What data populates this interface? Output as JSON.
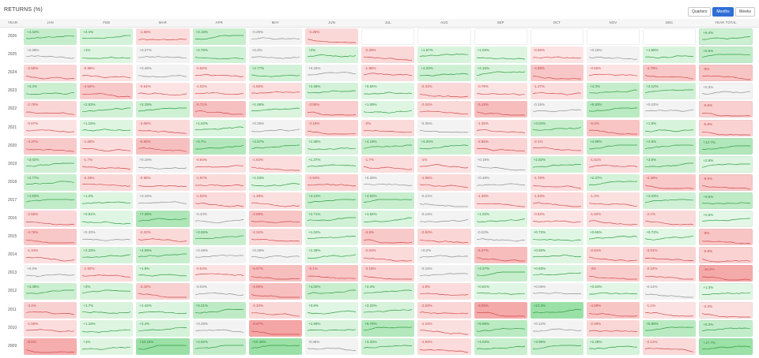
{
  "title": "RETURNS (%)",
  "toggle": [
    {
      "label": "Quarters",
      "active": false
    },
    {
      "label": "Months",
      "active": true
    },
    {
      "label": "Weeks",
      "active": false
    }
  ],
  "columns": [
    "YEAR",
    "JAN",
    "FEB",
    "MAR",
    "APR",
    "MAY",
    "JUN",
    "JUL",
    "AUG",
    "SEP",
    "OCT",
    "NOV",
    "DEC",
    "YEAR TOTAL"
  ],
  "rows": [
    {
      "year": "2026",
      "values": [
        "+4.34%",
        "+2.4%",
        "-1.68%",
        "+4.16%",
        "-0.29%",
        "-2.28%",
        null,
        null,
        null,
        null,
        null,
        null
      ],
      "total": "+6.4%"
    },
    {
      "year": "2025",
      "values": [
        "+0.38%",
        "+1%",
        "+0.37%",
        "+2.75%",
        "+0.3%",
        "+2%",
        "-2.29%",
        "+1.87%",
        "+1.03%",
        "-0.56%",
        "+0.16%",
        "+1.86%"
      ],
      "total": "+8.6%"
    },
    {
      "year": "2024",
      "values": [
        "-2.59%",
        "-0.98%",
        "+0.48%",
        "-0.92%",
        "+2.77%",
        "+0.26%",
        "-1.86%",
        "+3.33%",
        "+2.15%",
        "-4.88%",
        "-0.56%",
        "-4.79%"
      ],
      "total": "-9%"
    },
    {
      "year": "2023",
      "values": [
        "+3.4%",
        "-4.52%",
        "-0.64%",
        "-1.02%",
        "-1.55%",
        "+2.46%",
        "+0.84%",
        "-2.41%",
        "-0.78%",
        "-1.47%",
        "+4.3%",
        "+3.12%"
      ],
      "total": "+0.3%"
    },
    {
      "year": "2022",
      "values": [
        "-2.75%",
        "+2.83%",
        "+3.19%",
        "-5.71%",
        "+1.58%",
        "-3.95%",
        "+1.09%",
        "-2.04%",
        "-6.19%",
        "-0.16%",
        "+5.93%",
        "+0.22%"
      ],
      "total": "-6.5%"
    },
    {
      "year": "2021",
      "values": [
        "-0.67%",
        "+1.16%",
        "-2.06%",
        "+1.62%",
        "+0.35%",
        "-3.18%",
        "-2%",
        "-0.35%",
        "-1.25%",
        "+4.04%",
        "-5.2%",
        "+1.9%"
      ],
      "total": "-5.8%"
    },
    {
      "year": "2020",
      "values": [
        "-4.37%",
        "-1.68%",
        "-5.85%",
        "+6.7%",
        "+4.57%",
        "+1.68%",
        "+4.19%",
        "+3.26%",
        "-2.85%",
        "-2.1%",
        "+4.99%",
        "+4.6%"
      ],
      "total": "+12.7%"
    },
    {
      "year": "2019",
      "values": [
        "+3.02%",
        "-1.7%",
        "+0.19%",
        "-0.84%",
        "-1.63%",
        "+1.37%",
        "-1.7%",
        "-1%",
        "+0.19%",
        "+2.82%",
        "-1.81%",
        "+3.5%"
      ],
      "total": "+2.5%"
    },
    {
      "year": "2018",
      "values": [
        "+3.77%",
        "-2.33%",
        "-0.98%",
        "-1.97%",
        "+1.03%",
        "-2.94%",
        "+0.28%",
        "-1.95%",
        "+0.48%",
        "-1.78%",
        "+2.37%",
        "-4.46%"
      ],
      "total": "-8.5%"
    },
    {
      "year": "2017",
      "values": [
        "+4.93%",
        "+1.2%",
        "+0.16%",
        "-1.93%",
        "-1.39%",
        "+4.13%",
        "+4.02%",
        "-0.21%",
        "-1.49%",
        "-1.83%",
        "-1.2%",
        "+3.03%"
      ],
      "total": "+9.5%"
    },
    {
      "year": "2016",
      "values": [
        "-2.55%",
        "+0.81%",
        "+7.39%",
        "-0.44%",
        "-4.98%",
        "+2.71%",
        "+1.62%",
        "-0.14%",
        "+1.02%",
        "-0.62%",
        "-1.62%",
        "-2.1%"
      ],
      "total": "+0.6%"
    },
    {
      "year": "2015",
      "values": [
        "-4.76%",
        "+0.33%",
        "-2.22%",
        "+3.93%",
        "-2.32%",
        "+1.04%",
        "-4.5%",
        "-2.62%",
        "-0.03%",
        "+0.73%",
        "+0.65%",
        "+0.72%"
      ],
      "total": "-9%"
    },
    {
      "year": "2014",
      "values": [
        "-1.34%",
        "+2.33%",
        "+4.09%",
        "+0.48%",
        "+0.38%",
        "+1.39%",
        "-2.01%",
        "+0.2%",
        "-6.37%",
        "+0.92%",
        "-2.61%",
        "-3.01%"
      ],
      "total": "-5.8%"
    },
    {
      "year": "2013",
      "values": [
        "+0.3%",
        "-1.92%",
        "+1.9%",
        "-0.64%",
        "-5.97%",
        "-5.1%",
        "-3.18%",
        "-0.16%",
        "+4.27%",
        "+0.83%",
        "-4%",
        "-2.22%"
      ],
      "total": "-16.2%"
    },
    {
      "year": "2012",
      "values": [
        "+3.48%",
        "+2%",
        "-3.42%",
        "-0.04%",
        "-5.95%",
        "+4.02%",
        "+2.4%",
        "-1.8%",
        "+0.81%",
        "+0.06%",
        "+0.53%",
        "-0.14%"
      ],
      "total": "+1.3%"
    },
    {
      "year": "2011",
      "values": [
        "-3.4%",
        "+1.7%",
        "+1.42%",
        "+5.21%",
        "-2.34%",
        "+0.8%",
        "+2.22%",
        "-2.63%",
        "-8.95%",
        "+10.3%",
        "-4.99%",
        "-1.1%"
      ],
      "total": "-2.3%"
    },
    {
      "year": "2010",
      "values": [
        "-1.56%",
        "+1.16%",
        "+2.4%",
        "+0.45%",
        "-9.67%",
        "+1.69%",
        "+6.76%",
        "-1.15%",
        "+5.96%",
        "+0.12%",
        "-2.49%",
        "+5.86%"
      ],
      "total": "+8.3%"
    },
    {
      "year": "2009",
      "values": [
        "-8.5%",
        "+1%",
        "+10.19%",
        "+4.82%",
        "+10.38%",
        "-0.36%",
        "+3.33%",
        "-1.93%",
        "+4.03%",
        "+3.99%",
        "+2.28%",
        "-2.12%"
      ],
      "total": "+17.7%"
    }
  ]
}
